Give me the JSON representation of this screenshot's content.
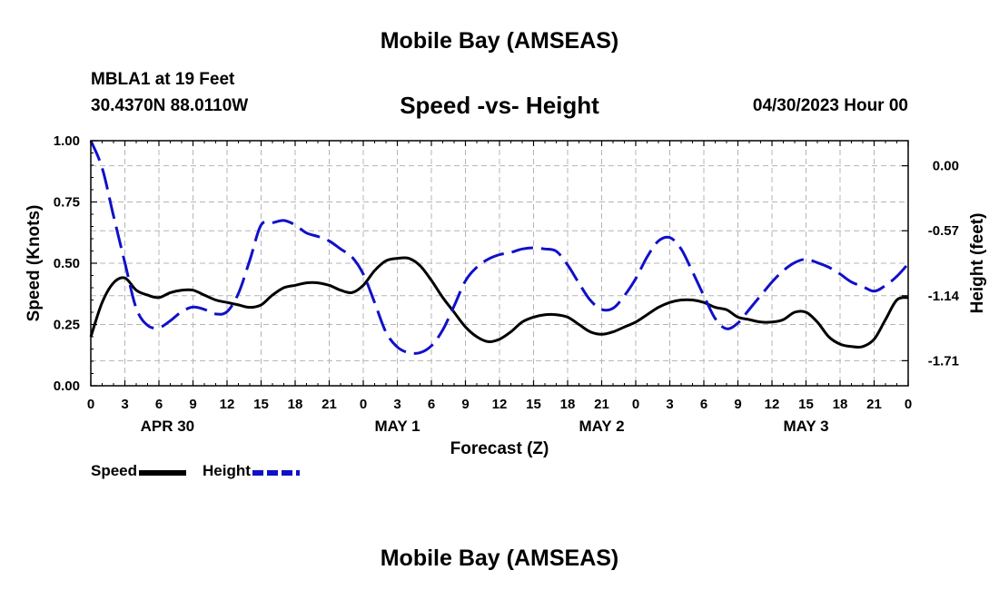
{
  "page": {
    "title": "Mobile Bay (AMSEAS)",
    "station": "MBLA1 at 19 Feet",
    "coords": "30.4370N  88.0110W",
    "subtitle": "Speed -vs- Height",
    "datetime": "04/30/2023 Hour 00",
    "footer_title": "Mobile Bay (AMSEAS)"
  },
  "legend": {
    "speed_label": "Speed",
    "height_label": "Height"
  },
  "colors": {
    "speed": "#000000",
    "height": "#1010c8",
    "grid": "#b4b4b4"
  },
  "chart_data": {
    "type": "line",
    "title": "Speed -vs- Height",
    "xlabel": "Forecast (Z)",
    "ylabel": "Speed (Knots)",
    "y2label": "Height (feet)",
    "xlim": [
      0,
      72
    ],
    "ylim": [
      0,
      1
    ],
    "y2lim": [
      -1.93,
      0.22
    ],
    "yticks": [
      0,
      0.25,
      0.5,
      0.75,
      1
    ],
    "ytick_labels": [
      "0.00",
      "0.25",
      "0.50",
      "0.75",
      "1.00"
    ],
    "y2ticks": [
      0,
      -0.57,
      -1.14,
      -1.71
    ],
    "y2tick_labels": [
      "0.00",
      "-0.57",
      "-1.14",
      "-1.71"
    ],
    "xticks": [
      0,
      3,
      6,
      9,
      12,
      15,
      18,
      21,
      24,
      27,
      30,
      33,
      36,
      39,
      42,
      45,
      48,
      51,
      54,
      57,
      60,
      63,
      66,
      69,
      72
    ],
    "xtick_labels": [
      "0",
      "3",
      "6",
      "9",
      "12",
      "15",
      "18",
      "21",
      "0",
      "3",
      "6",
      "9",
      "12",
      "15",
      "18",
      "21",
      "0",
      "3",
      "6",
      "9",
      "12",
      "15",
      "18",
      "21",
      "0"
    ],
    "day_labels": [
      {
        "label": "APR 30",
        "hour": 6.75
      },
      {
        "label": "MAY 1",
        "hour": 27
      },
      {
        "label": "MAY 2",
        "hour": 45
      },
      {
        "label": "MAY 3",
        "hour": 63
      }
    ],
    "series": [
      {
        "name": "Speed",
        "axis": "left",
        "style": "solid",
        "x": [
          0,
          1,
          2,
          3,
          4,
          5,
          6,
          7,
          8,
          9,
          10,
          11,
          12,
          13,
          14,
          15,
          16,
          17,
          18,
          19,
          20,
          21,
          22,
          23,
          24,
          25,
          26,
          27,
          28,
          29,
          30,
          31,
          32,
          33,
          34,
          35,
          36,
          37,
          38,
          39,
          40,
          41,
          42,
          43,
          44,
          45,
          46,
          47,
          48,
          49,
          50,
          51,
          52,
          53,
          54,
          55,
          56,
          57,
          58,
          59,
          60,
          61,
          62,
          63,
          64,
          65,
          66,
          67,
          68,
          69,
          70,
          71,
          72
        ],
        "values": [
          0.2,
          0.34,
          0.42,
          0.44,
          0.39,
          0.37,
          0.36,
          0.38,
          0.39,
          0.39,
          0.37,
          0.35,
          0.34,
          0.33,
          0.32,
          0.33,
          0.37,
          0.4,
          0.41,
          0.42,
          0.42,
          0.41,
          0.39,
          0.38,
          0.41,
          0.47,
          0.51,
          0.52,
          0.52,
          0.49,
          0.43,
          0.36,
          0.3,
          0.24,
          0.2,
          0.18,
          0.19,
          0.22,
          0.26,
          0.28,
          0.29,
          0.29,
          0.28,
          0.25,
          0.22,
          0.21,
          0.22,
          0.24,
          0.26,
          0.29,
          0.32,
          0.34,
          0.35,
          0.35,
          0.34,
          0.32,
          0.31,
          0.28,
          0.27,
          0.26,
          0.26,
          0.27,
          0.3,
          0.3,
          0.26,
          0.2,
          0.17,
          0.16,
          0.16,
          0.19,
          0.27,
          0.35,
          0.36
        ]
      },
      {
        "name": "Height",
        "axis": "right",
        "style": "dashed",
        "x": [
          0,
          1,
          2,
          3,
          4,
          5,
          6,
          7,
          8,
          9,
          10,
          11,
          12,
          13,
          14,
          15,
          16,
          17,
          18,
          19,
          20,
          21,
          22,
          23,
          24,
          25,
          26,
          27,
          28,
          29,
          30,
          31,
          32,
          33,
          34,
          35,
          36,
          37,
          38,
          39,
          40,
          41,
          42,
          43,
          44,
          45,
          46,
          47,
          48,
          49,
          50,
          51,
          52,
          53,
          54,
          55,
          56,
          57,
          58,
          59,
          60,
          61,
          62,
          63,
          64,
          65,
          66,
          67,
          68,
          69,
          70,
          71,
          72
        ],
        "values": [
          0.22,
          -0.02,
          -0.44,
          -0.85,
          -1.25,
          -1.4,
          -1.42,
          -1.36,
          -1.28,
          -1.24,
          -1.26,
          -1.3,
          -1.28,
          -1.12,
          -0.83,
          -0.52,
          -0.5,
          -0.48,
          -0.52,
          -0.59,
          -0.62,
          -0.66,
          -0.73,
          -0.8,
          -0.95,
          -1.2,
          -1.46,
          -1.59,
          -1.64,
          -1.64,
          -1.58,
          -1.44,
          -1.23,
          -1.01,
          -0.89,
          -0.82,
          -0.78,
          -0.76,
          -0.73,
          -0.72,
          -0.73,
          -0.75,
          -0.87,
          -1.03,
          -1.18,
          -1.26,
          -1.25,
          -1.14,
          -0.99,
          -0.8,
          -0.66,
          -0.63,
          -0.73,
          -0.93,
          -1.14,
          -1.34,
          -1.43,
          -1.38,
          -1.26,
          -1.14,
          -1.02,
          -0.92,
          -0.85,
          -0.82,
          -0.85,
          -0.89,
          -0.95,
          -1.02,
          -1.06,
          -1.1,
          -1.05,
          -0.97,
          -0.86
        ]
      }
    ]
  }
}
